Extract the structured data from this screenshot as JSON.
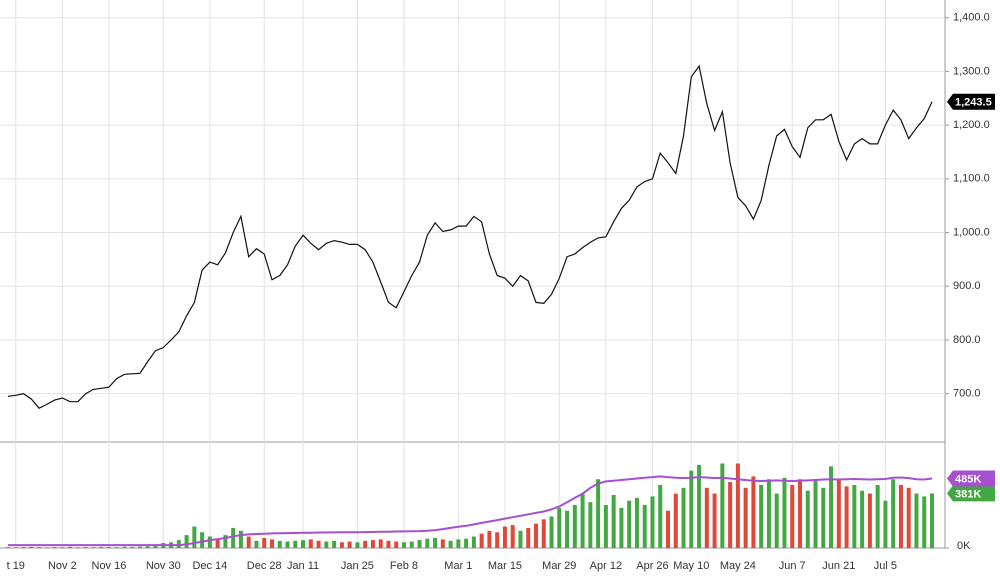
{
  "chart_data": {
    "type": "line",
    "categories": [
      null,
      "t 19",
      null,
      null,
      null,
      null,
      null,
      "Nov 2",
      null,
      null,
      null,
      null,
      null,
      "Nov 16",
      null,
      null,
      null,
      null,
      null,
      null,
      "Nov 30",
      null,
      null,
      null,
      null,
      null,
      "Dec 14",
      null,
      null,
      null,
      null,
      null,
      null,
      "Dec 28",
      null,
      null,
      null,
      null,
      "Jan 11",
      null,
      null,
      null,
      null,
      null,
      null,
      "Jan 25",
      null,
      null,
      null,
      null,
      null,
      "Feb 8",
      null,
      null,
      null,
      null,
      null,
      null,
      "Mar 1",
      null,
      null,
      null,
      null,
      null,
      "Mar 15",
      null,
      null,
      null,
      null,
      null,
      null,
      "Mar 29",
      null,
      null,
      null,
      null,
      null,
      "Apr 12",
      null,
      null,
      null,
      null,
      null,
      "Apr 26",
      null,
      null,
      null,
      null,
      "May 10",
      null,
      null,
      null,
      null,
      null,
      "May 24",
      null,
      null,
      null,
      null,
      null,
      null,
      "Jun 7",
      null,
      null,
      null,
      null,
      null,
      "Jun 21",
      null,
      null,
      null,
      null,
      null,
      "Jul 5",
      null,
      null,
      null,
      null,
      null,
      null
    ],
    "ylim": [
      610,
      1433
    ],
    "yticks": [
      {
        "value": 700,
        "label": "700.0"
      },
      {
        "value": 800,
        "label": "800.0"
      },
      {
        "value": 900,
        "label": "900.0"
      },
      {
        "value": 1000,
        "label": "1,000.0"
      },
      {
        "value": 1100,
        "label": "1,100.0"
      },
      {
        "value": 1200,
        "label": "1,200.0"
      },
      {
        "value": 1300,
        "label": "1,300.0"
      },
      {
        "value": 1400,
        "label": "1,400.0"
      }
    ],
    "y2lim": [
      0,
      740
    ],
    "y2ticks": [
      {
        "value": 0,
        "label": "0K"
      }
    ],
    "grid": true,
    "series": [
      {
        "type": "line",
        "color": "#111111",
        "label_color": "#000000",
        "values": [
          695,
          697,
          700,
          690,
          673,
          680,
          688,
          692,
          685,
          685,
          700,
          708,
          710,
          712,
          728,
          736,
          737,
          738,
          760,
          780,
          786,
          800,
          815,
          845,
          870,
          930,
          945,
          940,
          962,
          1000,
          1030,
          955,
          970,
          960,
          912,
          920,
          940,
          975,
          995,
          980,
          968,
          980,
          985,
          982,
          978,
          978,
          968,
          945,
          908,
          870,
          860,
          890,
          920,
          945,
          995,
          1018,
          1002,
          1005,
          1012,
          1012,
          1030,
          1020,
          960,
          920,
          915,
          900,
          920,
          910,
          870,
          868,
          885,
          915,
          955,
          960,
          972,
          982,
          990,
          992,
          1020,
          1045,
          1060,
          1085,
          1095,
          1100,
          1148,
          1130,
          1110,
          1180,
          1290,
          1310,
          1240,
          1190,
          1225,
          1130,
          1065,
          1050,
          1025,
          1060,
          1125,
          1180,
          1192,
          1160,
          1140,
          1195,
          1210,
          1210,
          1220,
          1170,
          1135,
          1165,
          1175,
          1165,
          1165,
          1200,
          1228,
          1210,
          1175,
          1195,
          1212,
          1243.5
        ],
        "value_labels": {
          "119": "1,243.5"
        }
      },
      {
        "type": "bar",
        "axis": "y2",
        "up_color": "#43a843",
        "down_color": "#e0483a",
        "color": "#43a843",
        "values": [
          6,
          5,
          7,
          8,
          6,
          5,
          7,
          6,
          8,
          5,
          7,
          6,
          8,
          7,
          6,
          9,
          8,
          10,
          12,
          20,
          35,
          40,
          55,
          90,
          150,
          110,
          80,
          60,
          90,
          140,
          120,
          80,
          50,
          70,
          60,
          50,
          45,
          50,
          55,
          60,
          50,
          45,
          50,
          40,
          45,
          40,
          50,
          55,
          60,
          50,
          45,
          40,
          45,
          55,
          65,
          70,
          60,
          50,
          60,
          65,
          80,
          100,
          120,
          110,
          150,
          160,
          120,
          140,
          170,
          200,
          220,
          280,
          260,
          300,
          380,
          320,
          480,
          300,
          370,
          280,
          330,
          350,
          300,
          360,
          440,
          260,
          380,
          420,
          540,
          580,
          420,
          380,
          590,
          460,
          590,
          420,
          500,
          440,
          480,
          380,
          490,
          440,
          480,
          400,
          470,
          420,
          570,
          480,
          430,
          440,
          400,
          380,
          440,
          330,
          480,
          440,
          420,
          380,
          360,
          381
        ],
        "value_labels": {
          "119": "381K"
        }
      },
      {
        "type": "line",
        "axis": "y2",
        "color": "#a64fd1",
        "values": [
          20,
          20,
          20,
          20,
          20,
          20,
          20,
          20,
          20,
          20,
          20,
          20,
          20,
          20,
          20,
          20,
          20,
          20,
          20,
          20,
          20,
          20,
          20,
          25,
          35,
          45,
          55,
          62,
          70,
          82,
          90,
          95,
          98,
          100,
          102,
          103,
          104,
          105,
          106,
          107,
          108,
          108,
          109,
          110,
          110,
          110,
          111,
          112,
          113,
          114,
          115,
          116,
          117,
          118,
          120,
          125,
          132,
          140,
          148,
          155,
          165,
          175,
          185,
          195,
          205,
          215,
          225,
          235,
          245,
          255,
          270,
          290,
          320,
          350,
          380,
          420,
          450,
          465,
          470,
          475,
          480,
          485,
          490,
          495,
          500,
          495,
          490,
          488,
          490,
          495,
          492,
          488,
          490,
          485,
          480,
          475,
          470,
          468,
          470,
          472,
          470,
          468,
          470,
          472,
          475,
          478,
          480,
          478,
          480,
          482,
          480,
          478,
          480,
          482,
          490,
          492,
          488,
          480,
          478,
          485
        ],
        "value_labels": {
          "119": "485K"
        }
      }
    ]
  }
}
